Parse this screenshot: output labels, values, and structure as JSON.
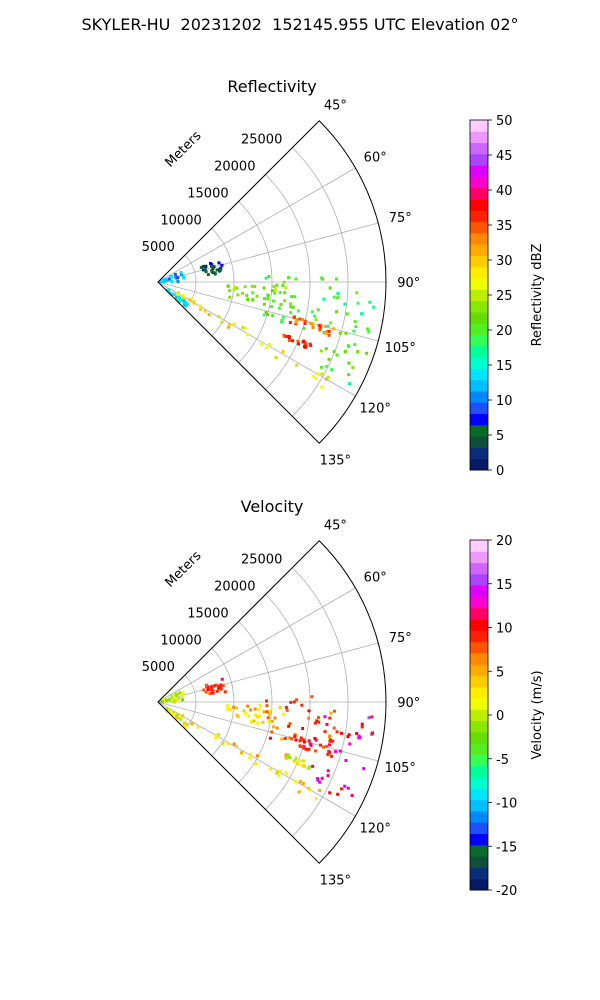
{
  "suptitle": "SKYLER-HU  20231202  152145.955 UTC Elevation 02°",
  "chart_data": [
    {
      "type": "heatmap",
      "subtype": "polar-ppi-sector",
      "title": "Reflectivity",
      "radial_axis_label": "Meters",
      "radial_ticks": [
        5000,
        10000,
        15000,
        20000,
        25000
      ],
      "r_max": 30000,
      "theta_range_deg": [
        45,
        135
      ],
      "angle_ticks": [
        "45°",
        "60°",
        "75°",
        "90°",
        "105°",
        "120°",
        "135°"
      ],
      "angle_tick_values": [
        45,
        60,
        75,
        90,
        105,
        120,
        135
      ],
      "grid": true,
      "colorbar": {
        "label": "Reflectivity dBZ",
        "min": 0,
        "max": 50,
        "ticks": [
          0,
          5,
          10,
          15,
          20,
          25,
          30,
          35,
          40,
          45,
          50
        ],
        "colors": [
          "#071a66",
          "#0a2e78",
          "#0f4f3a",
          "#0b6a2a",
          "#0000ff",
          "#1f4fff",
          "#0088ff",
          "#00bfff",
          "#00e5ff",
          "#00ffd0",
          "#00ff99",
          "#33ff55",
          "#55ee22",
          "#66dd00",
          "#88e800",
          "#bbee00",
          "#eeff00",
          "#ffee00",
          "#ffcc00",
          "#ffaa00",
          "#ff8800",
          "#ff5500",
          "#ff2200",
          "#ff0000",
          "#ff0066",
          "#ff00cc",
          "#dd00ff",
          "#aa44ff",
          "#cc66ff",
          "#ee99ff",
          "#ffccff"
        ]
      },
      "echo_clusters": [
        {
          "theta": [
            92,
            102
          ],
          "r": [
            9000,
            17000
          ],
          "value": 22
        },
        {
          "theta": [
            93,
            118
          ],
          "r": [
            22000,
            29000
          ],
          "value": 20
        },
        {
          "theta": [
            118,
            123
          ],
          "r": [
            3000,
            26000
          ],
          "value": 28
        },
        {
          "theta": [
            87,
            108
          ],
          "r": [
            14000,
            24000
          ],
          "value": 20
        },
        {
          "theta": [
            104,
            108
          ],
          "r": [
            18000,
            24000
          ],
          "value": 34
        },
        {
          "theta": [
            112,
            114
          ],
          "r": [
            18000,
            22000
          ],
          "value": 36
        },
        {
          "theta": [
            126,
            133
          ],
          "r": [
            1500,
            5000
          ],
          "value": 14
        },
        {
          "theta": [
            66,
            89
          ],
          "r": [
            400,
            3500
          ],
          "value": 12
        },
        {
          "theta": [
            70,
            82
          ],
          "r": [
            6000,
            9000
          ],
          "value": 5
        }
      ]
    },
    {
      "type": "heatmap",
      "subtype": "polar-ppi-sector",
      "title": "Velocity",
      "radial_axis_label": "Meters",
      "radial_ticks": [
        5000,
        10000,
        15000,
        20000,
        25000
      ],
      "r_max": 30000,
      "theta_range_deg": [
        45,
        135
      ],
      "angle_ticks": [
        "45°",
        "60°",
        "75°",
        "90°",
        "105°",
        "120°",
        "135°"
      ],
      "angle_tick_values": [
        45,
        60,
        75,
        90,
        105,
        120,
        135
      ],
      "grid": true,
      "colorbar": {
        "label": "Velocity (m/s)",
        "min": -20,
        "max": 20,
        "ticks": [
          -20,
          -15,
          -10,
          -5,
          0,
          5,
          10,
          15,
          20
        ],
        "colors": [
          "#071a66",
          "#0a2e78",
          "#0f4f3a",
          "#0b6a2a",
          "#0000ff",
          "#1f4fff",
          "#0088ff",
          "#00bfff",
          "#00e5ff",
          "#00ffd0",
          "#00ff99",
          "#33ff55",
          "#55ee22",
          "#66dd00",
          "#88e800",
          "#bbee00",
          "#eeff00",
          "#ffee00",
          "#ffcc00",
          "#ffaa00",
          "#ff8800",
          "#ff5500",
          "#ff2200",
          "#ff0000",
          "#ff0066",
          "#ff00cc",
          "#dd00ff",
          "#aa44ff",
          "#cc66ff",
          "#ee99ff",
          "#ffccff"
        ]
      },
      "echo_clusters": [
        {
          "theta": [
            92,
            102
          ],
          "r": [
            9000,
            17000
          ],
          "value": 4
        },
        {
          "theta": [
            93,
            118
          ],
          "r": [
            22000,
            29000
          ],
          "value": 12
        },
        {
          "theta": [
            118,
            123
          ],
          "r": [
            3000,
            26000
          ],
          "value": 3
        },
        {
          "theta": [
            87,
            108
          ],
          "r": [
            14000,
            24000
          ],
          "value": 8
        },
        {
          "theta": [
            104,
            108
          ],
          "r": [
            18000,
            24000
          ],
          "value": 10
        },
        {
          "theta": [
            112,
            114
          ],
          "r": [
            18000,
            22000
          ],
          "value": 2
        },
        {
          "theta": [
            126,
            133
          ],
          "r": [
            1500,
            5000
          ],
          "value": 1
        },
        {
          "theta": [
            66,
            89
          ],
          "r": [
            400,
            3500
          ],
          "value": 0
        },
        {
          "theta": [
            70,
            82
          ],
          "r": [
            6000,
            9000
          ],
          "value": 9
        }
      ]
    }
  ]
}
